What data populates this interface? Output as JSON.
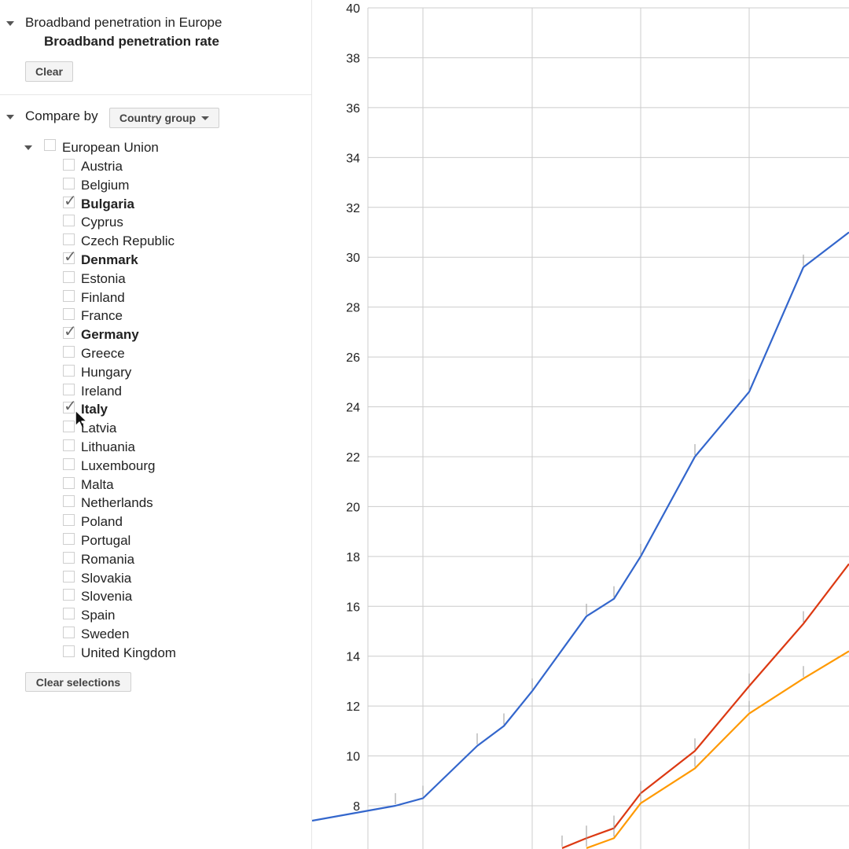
{
  "sidebar": {
    "dataset_title": "Broadband penetration in Europe",
    "metric_title": "Broadband penetration rate",
    "clear_label": "Clear",
    "compare_by_label": "Compare by",
    "compare_by_value": "Country group",
    "group_label": "European Union",
    "group_checked": false,
    "countries": [
      {
        "name": "Austria",
        "checked": false
      },
      {
        "name": "Belgium",
        "checked": false
      },
      {
        "name": "Bulgaria",
        "checked": true
      },
      {
        "name": "Cyprus",
        "checked": false
      },
      {
        "name": "Czech Republic",
        "checked": false
      },
      {
        "name": "Denmark",
        "checked": true
      },
      {
        "name": "Estonia",
        "checked": false
      },
      {
        "name": "Finland",
        "checked": false
      },
      {
        "name": "France",
        "checked": false
      },
      {
        "name": "Germany",
        "checked": true
      },
      {
        "name": "Greece",
        "checked": false
      },
      {
        "name": "Hungary",
        "checked": false
      },
      {
        "name": "Ireland",
        "checked": false
      },
      {
        "name": "Italy",
        "checked": true
      },
      {
        "name": "Latvia",
        "checked": false
      },
      {
        "name": "Lithuania",
        "checked": false
      },
      {
        "name": "Luxembourg",
        "checked": false
      },
      {
        "name": "Malta",
        "checked": false
      },
      {
        "name": "Netherlands",
        "checked": false
      },
      {
        "name": "Poland",
        "checked": false
      },
      {
        "name": "Portugal",
        "checked": false
      },
      {
        "name": "Romania",
        "checked": false
      },
      {
        "name": "Slovakia",
        "checked": false
      },
      {
        "name": "Slovenia",
        "checked": false
      },
      {
        "name": "Spain",
        "checked": false
      },
      {
        "name": "Sweden",
        "checked": false
      },
      {
        "name": "United Kingdom",
        "checked": false
      }
    ],
    "clear_selections_label": "Clear selections"
  },
  "chart_data": {
    "type": "line",
    "title": "",
    "xlabel": "",
    "ylabel": "",
    "ylim": [
      7,
      40
    ],
    "yticks": [
      8,
      10,
      12,
      14,
      16,
      18,
      20,
      22,
      24,
      26,
      28,
      30,
      32,
      34,
      36,
      38,
      40
    ],
    "x": [
      0,
      1,
      2,
      3,
      4,
      5,
      6,
      7,
      8,
      9,
      10,
      11,
      12,
      13,
      14,
      15,
      16,
      17
    ],
    "series": [
      {
        "color": "#3366cc",
        "values": [
          7.4,
          8.0,
          8.3,
          null,
          10.4,
          11.2,
          12.6,
          null,
          15.6,
          16.3,
          18.0,
          null,
          22.0,
          null,
          24.6,
          null,
          29.6,
          31.0
        ]
      },
      {
        "color": "#dc3912",
        "values": [
          null,
          null,
          null,
          null,
          null,
          null,
          null,
          6.3,
          6.7,
          7.1,
          8.5,
          null,
          10.2,
          null,
          12.8,
          null,
          15.3,
          17.7
        ]
      },
      {
        "color": "#ff9900",
        "values": [
          null,
          null,
          null,
          null,
          null,
          null,
          null,
          null,
          6.3,
          6.7,
          8.1,
          null,
          9.5,
          null,
          11.7,
          null,
          13.1,
          14.2
        ]
      }
    ],
    "grid": true,
    "legend": "none"
  },
  "colors": {
    "grid": "#cccccc",
    "tick_mark": "#999999"
  }
}
